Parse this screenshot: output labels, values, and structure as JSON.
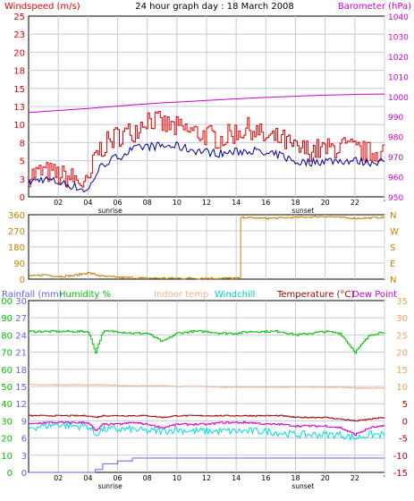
{
  "title": "24 hour graph day : 18 March 2008",
  "colors": {
    "wind": "#e00000",
    "gust": "#e00000",
    "avgwind": "#00009a",
    "baro": "#cc00cc",
    "winddir": "#c88000",
    "humidity": "#00c000",
    "indoor": "#f4b090",
    "windchill": "#00dddd",
    "temperature": "#9c0000",
    "dewpoint": "#cc00cc",
    "rainfall": "#6060ff",
    "grid": "#c8c8d8"
  },
  "chart_data": [
    {
      "type": "line",
      "label_windspeed": "Windspeed (m/s)",
      "label_barometer": "Barometer (hPa)",
      "ylim_left": [
        0,
        25
      ],
      "yticks_left": [
        "0",
        "3",
        "5",
        "8",
        "10",
        "13",
        "15",
        "18",
        "20",
        "23",
        "25"
      ],
      "ylim_right": [
        950,
        1040
      ],
      "yticks_right": [
        "950",
        "960",
        "970",
        "980",
        "990",
        "1000",
        "1010",
        "1020",
        "1030",
        "1040"
      ],
      "xticks": [
        "02",
        "04",
        "06",
        "08",
        "10",
        "12",
        "14",
        "16",
        "18",
        "20",
        "22",
        "00"
      ],
      "xticks_display": [
        "02",
        "04",
        "06",
        "08",
        "10",
        "12",
        "14",
        "16",
        "18",
        "20",
        "22",
        "'"
      ],
      "sunrise_label": "sunrise",
      "sunset_label": "sunset",
      "hours": [
        0,
        1,
        2,
        3,
        4,
        4.5,
        5,
        6,
        7,
        8,
        9,
        10,
        11,
        12,
        13,
        14,
        15,
        16,
        17,
        18,
        19,
        20,
        21,
        22,
        23,
        24
      ],
      "series": [
        {
          "name": "gust",
          "values": [
            3,
            3.5,
            3,
            2.5,
            1.5,
            6,
            7,
            8.5,
            9,
            11,
            10,
            9.5,
            9,
            8.5,
            8,
            9,
            9.5,
            8,
            8,
            6.5,
            6.5,
            6.5,
            7,
            6.5,
            6,
            6.5
          ]
        },
        {
          "name": "avg",
          "values": [
            2,
            2.5,
            2,
            1.5,
            0.8,
            3,
            4.5,
            5.5,
            6.5,
            7,
            7,
            7,
            6.5,
            6.2,
            6,
            6.2,
            6.5,
            5.8,
            5.8,
            4.8,
            4.8,
            5,
            5,
            5,
            4.8,
            5
          ]
        },
        {
          "name": "barometer",
          "values": [
            992,
            992.5,
            993,
            993.5,
            994,
            994.3,
            994.6,
            995.2,
            995.8,
            996.3,
            996.8,
            997.2,
            997.6,
            998,
            998.4,
            998.8,
            999.2,
            999.5,
            999.8,
            1000.1,
            1000.4,
            1000.6,
            1000.8,
            1001,
            1001.1,
            1001.2
          ]
        }
      ]
    },
    {
      "type": "line",
      "ylim": [
        0,
        360
      ],
      "yticks_left": [
        "0",
        "90",
        "180",
        "270",
        "360"
      ],
      "compass": [
        "N",
        "W",
        "S",
        "E",
        "N"
      ],
      "xticks": [
        "02",
        "04",
        "06",
        "08",
        "10",
        "12",
        "14",
        "16",
        "18",
        "20",
        "22",
        "00"
      ],
      "series": [
        {
          "name": "winddirection",
          "hours": [
            0,
            1,
            2,
            3,
            4,
            5,
            6,
            8,
            10,
            12,
            14.2,
            14.25,
            16,
            18,
            20,
            22,
            24
          ],
          "values": [
            15,
            25,
            15,
            20,
            35,
            15,
            10,
            5,
            5,
            5,
            5,
            345,
            340,
            345,
            350,
            340,
            345
          ]
        }
      ]
    },
    {
      "type": "line",
      "label_rainfall": "Rainfall (mm)",
      "label_humidity": "Humidity %",
      "label_indoor": "Indoor temp",
      "label_windchill": "Windchill",
      "label_temperature": "Temperature (°C)",
      "label_dewpoint": "Dew Point",
      "ylim_rain": [
        0,
        30
      ],
      "yticks_rain": [
        "0",
        "3",
        "6",
        "9",
        "12",
        "15",
        "18",
        "21",
        "24",
        "27",
        "30"
      ],
      "ylim_humidity": [
        0,
        100
      ],
      "yticks_humidity": [
        "0",
        "10",
        "20",
        "30",
        "40",
        "50",
        "60",
        "70",
        "80",
        "90",
        "100"
      ],
      "ylim_temp": [
        -15,
        35
      ],
      "yticks_temp": [
        "-15",
        "-10",
        "-5",
        "0",
        "5",
        "10",
        "15",
        "20",
        "25",
        "30",
        "35"
      ],
      "xticks": [
        "02",
        "04",
        "06",
        "08",
        "10",
        "12",
        "14",
        "16",
        "18",
        "20",
        "22",
        "00"
      ],
      "sunrise_label": "sunrise",
      "sunset_label": "sunset",
      "hours": [
        0,
        1,
        2,
        3,
        4,
        4.5,
        5,
        6,
        7,
        8,
        9,
        10,
        11,
        12,
        13,
        14,
        15,
        16,
        17,
        18,
        19,
        20,
        21,
        22,
        23,
        24
      ],
      "series": [
        {
          "name": "humidity",
          "values": [
            82,
            82,
            82,
            82,
            82,
            70,
            82,
            82,
            81,
            81,
            76,
            81,
            82,
            82,
            81,
            81,
            82,
            82,
            82,
            80,
            81,
            82,
            81,
            70,
            80,
            82
          ]
        },
        {
          "name": "indoor",
          "values": [
            10.5,
            10.5,
            10.5,
            10.5,
            10.5,
            10.5,
            10.5,
            10.3,
            10.2,
            10.2,
            10.2,
            10,
            10,
            10,
            9.8,
            9.8,
            9.8,
            9.8,
            9.8,
            9.8,
            9.8,
            9.8,
            9.8,
            9.5,
            9.5,
            9.5
          ]
        },
        {
          "name": "windchill",
          "values": [
            -2,
            -1.5,
            -1,
            -1.5,
            -1.5,
            -4,
            -2.5,
            -2.5,
            -2.5,
            -3,
            -3,
            -2.5,
            -3,
            -3,
            -3,
            -3,
            -3,
            -3,
            -3.5,
            -4,
            -4,
            -4,
            -4,
            -5,
            -4,
            -4
          ]
        },
        {
          "name": "temperature",
          "values": [
            1.5,
            1.5,
            1.5,
            1.5,
            1.5,
            1,
            1.5,
            1.5,
            1.5,
            1.5,
            1,
            1.5,
            1.5,
            1.5,
            1.5,
            1.5,
            1.5,
            1.5,
            1.5,
            1,
            1,
            1,
            0.5,
            0,
            0.5,
            1
          ]
        },
        {
          "name": "dewpoint",
          "values": [
            -1,
            -0.5,
            -0.5,
            -0.5,
            -0.5,
            -3,
            -1,
            -1,
            -0.5,
            -1,
            -2,
            -1,
            -1,
            -1,
            -0.5,
            -0.5,
            -0.5,
            -1,
            -1,
            -1.5,
            -1.5,
            -1.5,
            -2,
            -4,
            -2,
            -1.5
          ]
        },
        {
          "name": "rainfall",
          "values": [
            0,
            0,
            0,
            0,
            0,
            0.5,
            1.5,
            2,
            2.5,
            2.5,
            2.5,
            2.5,
            2.5,
            2.5,
            2.5,
            2.5,
            2.5,
            2.5,
            2.5,
            2.5,
            2.5,
            2.5,
            2.5,
            2.5,
            2.5,
            2.5
          ]
        }
      ]
    }
  ]
}
